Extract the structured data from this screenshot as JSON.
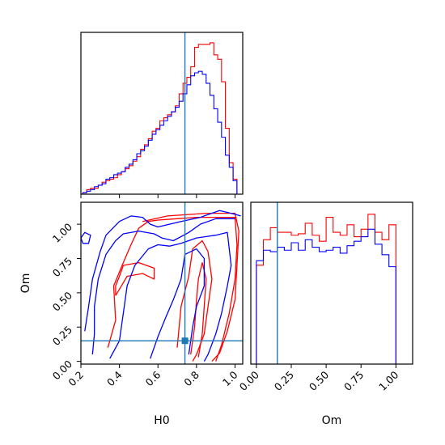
{
  "chart_data": [
    {
      "type": "histogram",
      "panel": "H0 marginal",
      "bins": [
        0.21,
        0.23,
        0.25,
        0.27,
        0.29,
        0.31,
        0.33,
        0.35,
        0.37,
        0.39,
        0.41,
        0.43,
        0.45,
        0.47,
        0.49,
        0.51,
        0.53,
        0.55,
        0.57,
        0.59,
        0.61,
        0.63,
        0.65,
        0.67,
        0.69,
        0.71,
        0.73,
        0.75,
        0.77,
        0.79,
        0.81,
        0.83,
        0.85,
        0.87,
        0.89,
        0.91,
        0.93,
        0.95,
        0.97,
        0.99,
        1.01
      ],
      "xlim": [
        0.2,
        1.04
      ],
      "ylim": [
        0,
        1.08
      ],
      "series": [
        {
          "color": "#ff0000",
          "values": [
            0.01,
            0.03,
            0.04,
            0.04,
            0.06,
            0.08,
            0.09,
            0.1,
            0.11,
            0.13,
            0.15,
            0.17,
            0.19,
            0.22,
            0.25,
            0.3,
            0.33,
            0.37,
            0.42,
            0.44,
            0.49,
            0.51,
            0.53,
            0.55,
            0.59,
            0.67,
            0.74,
            0.78,
            0.85,
            0.98,
            1.0,
            1.0,
            1.0,
            1.01,
            0.93,
            0.9,
            0.75,
            0.44,
            0.21,
            0.1
          ]
        },
        {
          "color": "#0000ff",
          "values": [
            0.01,
            0.02,
            0.03,
            0.05,
            0.06,
            0.07,
            0.1,
            0.11,
            0.13,
            0.14,
            0.15,
            0.18,
            0.2,
            0.23,
            0.27,
            0.29,
            0.32,
            0.36,
            0.4,
            0.43,
            0.46,
            0.49,
            0.52,
            0.55,
            0.58,
            0.62,
            0.67,
            0.73,
            0.79,
            0.81,
            0.82,
            0.8,
            0.74,
            0.66,
            0.57,
            0.48,
            0.38,
            0.26,
            0.18,
            0.09
          ]
        }
      ],
      "truth_line": 0.74
    },
    {
      "type": "contour",
      "panel": "H0 vs Om",
      "xlabel": "H0",
      "ylabel": "Om",
      "xlim": [
        0.2,
        1.04
      ],
      "ylim": [
        -0.02,
        1.16
      ],
      "xticks": [
        "0.2",
        "0.4",
        "0.6",
        "0.8",
        "1.0"
      ],
      "yticks": [
        "0.00",
        "0.25",
        "0.50",
        "0.75",
        "1.00"
      ],
      "series": [
        {
          "color": "#ff0000",
          "contours": [
            [
              [
                0.52,
                1.02
              ],
              [
                0.65,
                1.06
              ],
              [
                0.85,
                1.08
              ],
              [
                1.0,
                1.08
              ],
              [
                1.02,
                0.95
              ],
              [
                1.01,
                0.7
              ],
              [
                1.0,
                0.45
              ],
              [
                0.96,
                0.22
              ],
              [
                0.92,
                0.06
              ],
              [
                0.88,
                0.0
              ]
            ],
            [
              [
                0.34,
                0.1
              ],
              [
                0.38,
                0.3
              ],
              [
                0.37,
                0.55
              ],
              [
                0.42,
                0.72
              ],
              [
                0.46,
                0.85
              ],
              [
                0.5,
                0.97
              ],
              [
                0.55,
                1.02
              ],
              [
                0.6,
                1.03
              ],
              [
                0.7,
                1.04
              ],
              [
                0.8,
                1.05
              ],
              [
                0.95,
                1.05
              ],
              [
                1.0,
                1.05
              ],
              [
                1.01,
                0.85
              ],
              [
                1.0,
                0.6
              ],
              [
                0.97,
                0.35
              ],
              [
                0.93,
                0.12
              ],
              [
                0.9,
                0.0
              ]
            ],
            [
              [
                0.7,
                0.1
              ],
              [
                0.72,
                0.4
              ],
              [
                0.76,
                0.62
              ],
              [
                0.78,
                0.82
              ],
              [
                0.83,
                0.88
              ],
              [
                0.86,
                0.8
              ],
              [
                0.88,
                0.6
              ],
              [
                0.86,
                0.4
              ],
              [
                0.84,
                0.2
              ],
              [
                0.8,
                0.05
              ],
              [
                0.78,
                0.0
              ]
            ],
            [
              [
                0.77,
                0.05
              ],
              [
                0.79,
                0.25
              ],
              [
                0.8,
                0.45
              ],
              [
                0.81,
                0.6
              ],
              [
                0.83,
                0.72
              ],
              [
                0.85,
                0.6
              ],
              [
                0.84,
                0.4
              ],
              [
                0.83,
                0.2
              ],
              [
                0.81,
                0.03
              ]
            ],
            [
              [
                0.38,
                0.48
              ],
              [
                0.41,
                0.55
              ],
              [
                0.44,
                0.62
              ],
              [
                0.52,
                0.64
              ],
              [
                0.58,
                0.6
              ],
              [
                0.58,
                0.68
              ],
              [
                0.5,
                0.72
              ],
              [
                0.42,
                0.7
              ],
              [
                0.4,
                0.62
              ],
              [
                0.38,
                0.55
              ],
              [
                0.38,
                0.48
              ]
            ]
          ]
        },
        {
          "color": "#0000ff",
          "contours": [
            [
              [
                0.22,
                0.22
              ],
              [
                0.24,
                0.4
              ],
              [
                0.26,
                0.6
              ],
              [
                0.3,
                0.8
              ],
              [
                0.33,
                0.92
              ],
              [
                0.4,
                1.02
              ],
              [
                0.46,
                1.06
              ],
              [
                0.52,
                1.05
              ],
              [
                0.56,
                1.0
              ],
              [
                0.6,
                0.98
              ],
              [
                0.72,
                1.02
              ],
              [
                0.82,
                1.05
              ],
              [
                0.92,
                1.1
              ],
              [
                0.98,
                1.08
              ],
              [
                1.03,
                1.06
              ]
            ],
            [
              [
                0.26,
                0.05
              ],
              [
                0.27,
                0.2
              ],
              [
                0.27,
                0.4
              ],
              [
                0.29,
                0.6
              ],
              [
                0.33,
                0.78
              ],
              [
                0.38,
                0.88
              ],
              [
                0.42,
                0.93
              ],
              [
                0.5,
                0.95
              ],
              [
                0.58,
                0.93
              ],
              [
                0.62,
                0.9
              ],
              [
                0.68,
                0.88
              ],
              [
                0.76,
                0.94
              ],
              [
                0.82,
                1.0
              ],
              [
                0.9,
                1.04
              ],
              [
                1.0,
                1.04
              ]
            ],
            [
              [
                0.35,
                0.02
              ],
              [
                0.4,
                0.15
              ],
              [
                0.42,
                0.35
              ],
              [
                0.44,
                0.55
              ],
              [
                0.48,
                0.7
              ],
              [
                0.55,
                0.82
              ],
              [
                0.6,
                0.85
              ],
              [
                0.66,
                0.84
              ],
              [
                0.72,
                0.86
              ],
              [
                0.8,
                0.9
              ],
              [
                0.9,
                0.92
              ],
              [
                0.96,
                0.94
              ],
              [
                0.98,
                0.7
              ],
              [
                0.96,
                0.55
              ],
              [
                0.93,
                0.35
              ],
              [
                0.9,
                0.2
              ],
              [
                0.86,
                0.05
              ],
              [
                0.84,
                0.0
              ]
            ],
            [
              [
                0.56,
                0.02
              ],
              [
                0.6,
                0.18
              ],
              [
                0.64,
                0.32
              ],
              [
                0.68,
                0.45
              ],
              [
                0.72,
                0.6
              ],
              [
                0.74,
                0.78
              ],
              [
                0.8,
                0.82
              ],
              [
                0.84,
                0.75
              ],
              [
                0.84,
                0.55
              ],
              [
                0.8,
                0.4
              ],
              [
                0.78,
                0.25
              ],
              [
                0.76,
                0.05
              ]
            ],
            [
              [
                0.2,
                0.9
              ],
              [
                0.22,
                0.94
              ],
              [
                0.25,
                0.92
              ],
              [
                0.24,
                0.86
              ],
              [
                0.21,
                0.86
              ],
              [
                0.2,
                0.9
              ]
            ]
          ]
        }
      ],
      "truth_point": [
        0.74,
        0.15
      ]
    },
    {
      "type": "histogram",
      "panel": "Om marginal",
      "xlabel": "Om",
      "bins": [
        0.0,
        0.05,
        0.1,
        0.15,
        0.2,
        0.25,
        0.3,
        0.35,
        0.4,
        0.45,
        0.5,
        0.55,
        0.6,
        0.65,
        0.7,
        0.75,
        0.8,
        0.85,
        0.9,
        0.95,
        1.0
      ],
      "xlim": [
        -0.04,
        1.12
      ],
      "ylim": [
        0,
        1.08
      ],
      "xticks": [
        "0.00",
        "0.25",
        "0.50",
        "0.75",
        "1.00"
      ],
      "series": [
        {
          "color": "#ff0000",
          "values": [
            0.66,
            0.83,
            0.91,
            0.88,
            0.88,
            0.86,
            0.87,
            0.94,
            0.86,
            0.82,
            0.98,
            0.88,
            0.86,
            0.93,
            0.85,
            0.9,
            1.0,
            0.88,
            0.83,
            0.93
          ]
        },
        {
          "color": "#0000ff",
          "values": [
            0.69,
            0.76,
            0.75,
            0.78,
            0.76,
            0.81,
            0.76,
            0.83,
            0.78,
            0.75,
            0.76,
            0.78,
            0.74,
            0.79,
            0.82,
            0.85,
            0.9,
            0.8,
            0.73,
            0.65
          ]
        }
      ],
      "truth_line": 0.15
    }
  ],
  "colors": {
    "red": "#ff0000",
    "blue": "#0000ff",
    "truth": "#1f77b4"
  }
}
